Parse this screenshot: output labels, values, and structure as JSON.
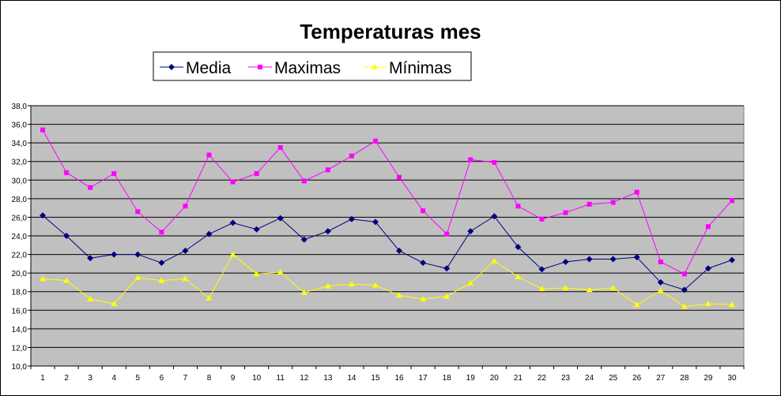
{
  "chart_data": {
    "type": "line",
    "title": "Temperaturas mes",
    "xlabel": "",
    "ylabel": "",
    "x": [
      1,
      2,
      3,
      4,
      5,
      6,
      7,
      8,
      9,
      10,
      11,
      12,
      13,
      14,
      15,
      16,
      17,
      18,
      19,
      20,
      21,
      22,
      23,
      24,
      25,
      26,
      27,
      28,
      29,
      30
    ],
    "x_tick_labels": [
      "1",
      "2",
      "3",
      "4",
      "5",
      "6",
      "7",
      "8",
      "9",
      "10",
      "11",
      "12",
      "13",
      "14",
      "15",
      "16",
      "17",
      "18",
      "19",
      "20",
      "21",
      "22",
      "23",
      "24",
      "25",
      "26",
      "27",
      "28",
      "29",
      "30"
    ],
    "ylim": [
      10,
      38
    ],
    "y_tick_labels": [
      "10,0",
      "12,0",
      "14,0",
      "16,0",
      "18,0",
      "20,0",
      "22,0",
      "24,0",
      "26,0",
      "28,0",
      "30,0",
      "32,0",
      "34,0",
      "36,0",
      "38,0"
    ],
    "grid": true,
    "legend_position": "top",
    "plot_background": "#c0c0c0",
    "series": [
      {
        "name": "Media",
        "color": "#000080",
        "marker": "diamond",
        "values": [
          26.2,
          24.0,
          21.6,
          22.0,
          22.0,
          21.1,
          22.4,
          24.2,
          25.4,
          24.7,
          25.9,
          23.6,
          24.5,
          25.8,
          25.5,
          22.4,
          21.1,
          20.5,
          24.5,
          26.1,
          22.8,
          20.4,
          21.2,
          21.5,
          21.5,
          21.7,
          19.0,
          18.2,
          20.5,
          21.4
        ]
      },
      {
        "name": "Maximas",
        "color": "#ff00ff",
        "marker": "square",
        "values": [
          35.4,
          30.8,
          29.2,
          30.7,
          26.6,
          24.4,
          27.2,
          32.7,
          29.8,
          30.7,
          33.5,
          29.9,
          31.1,
          32.6,
          34.2,
          30.3,
          26.7,
          24.2,
          32.2,
          31.9,
          27.2,
          25.8,
          26.5,
          27.4,
          27.6,
          28.7,
          21.2,
          19.9,
          25.0,
          27.8
        ]
      },
      {
        "name": "Mínimas",
        "color": "#ffff00",
        "marker": "triangle",
        "values": [
          19.4,
          19.2,
          17.2,
          16.7,
          19.5,
          19.2,
          19.4,
          17.3,
          22.0,
          19.9,
          20.1,
          17.9,
          18.6,
          18.8,
          18.7,
          17.6,
          17.2,
          17.5,
          18.9,
          21.3,
          19.6,
          18.3,
          18.4,
          18.2,
          18.4,
          16.6,
          18.1,
          16.4,
          16.7,
          16.6
        ]
      }
    ]
  }
}
